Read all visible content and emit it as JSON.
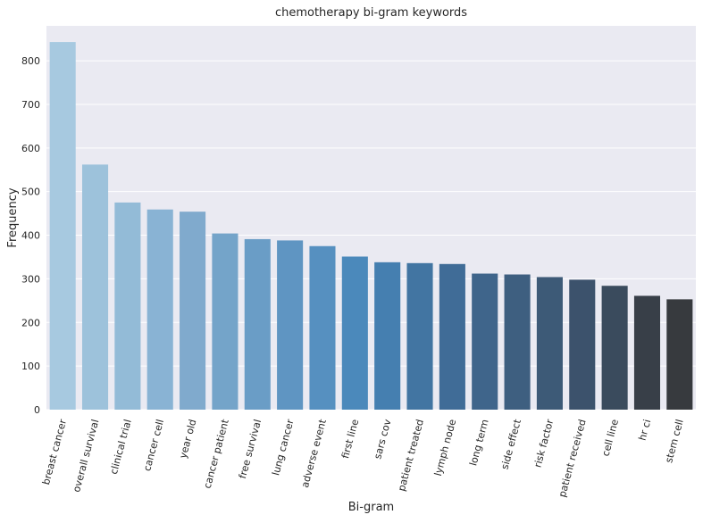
{
  "chart_data": {
    "type": "bar",
    "title": "chemotherapy bi-gram keywords",
    "xlabel": "Bi-gram",
    "ylabel": "Frequency",
    "ylim": [
      0,
      880
    ],
    "yticks": [
      0,
      100,
      200,
      300,
      400,
      500,
      600,
      700,
      800
    ],
    "grid": true,
    "categories": [
      "breast cancer",
      "overall survival",
      "clinical trial",
      "cancer cell",
      "year old",
      "cancer patient",
      "free survival",
      "lung cancer",
      "adverse event",
      "first line",
      "sars cov",
      "patient treated",
      "lymph node",
      "long term",
      "side effect",
      "risk factor",
      "patient received",
      "cell line",
      "hr ci",
      "stem cell"
    ],
    "values": [
      843,
      562,
      475,
      459,
      454,
      404,
      391,
      388,
      375,
      351,
      338,
      336,
      334,
      312,
      310,
      304,
      298,
      284,
      261,
      253
    ],
    "colors": [
      "#a7c9e0",
      "#9dc2db",
      "#93bbd7",
      "#89b3d4",
      "#80aacd",
      "#74a4c9",
      "#6a9dc6",
      "#5f95c2",
      "#5690c0",
      "#4b89bb",
      "#457fb0",
      "#4275a2",
      "#406c97",
      "#3f658b",
      "#3e5f80",
      "#3d5a77",
      "#3c526c",
      "#3a4b5d",
      "#383f48",
      "#373a3e"
    ]
  }
}
